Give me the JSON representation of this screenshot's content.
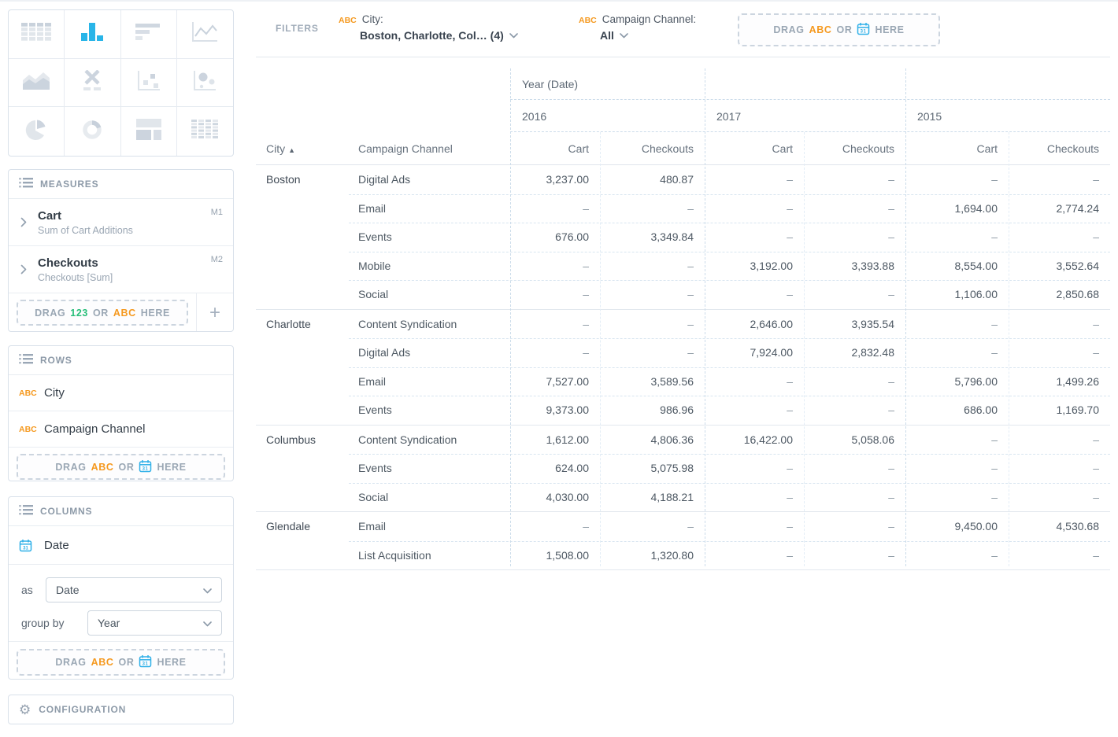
{
  "colors": {
    "accent_blue": "#29b5e8",
    "calendar_blue": "#2fb0e8",
    "abc_orange": "#f5991f",
    "num_green": "#27be79"
  },
  "sidebar": {
    "chart_picker": {
      "selected_index": 1,
      "icons": [
        "table",
        "bar-chart",
        "horizontal-bar-chart",
        "line-chart",
        "area-chart",
        "x-axis",
        "scatter-plot",
        "bubble-chart",
        "pie-chart",
        "donut-chart",
        "treemap",
        "pivot-table"
      ]
    },
    "measures": {
      "title": "MEASURES",
      "items": [
        {
          "name": "Cart",
          "desc": "Sum of Cart Additions",
          "badge": "M1"
        },
        {
          "name": "Checkouts",
          "desc": "Checkouts [Sum]",
          "badge": "M2"
        }
      ],
      "drop_tokens": [
        {
          "t": "DRAG",
          "k": "p"
        },
        {
          "t": "123",
          "k": "n"
        },
        {
          "t": "OR",
          "k": "p"
        },
        {
          "t": "ABC",
          "k": "a"
        },
        {
          "t": "HERE",
          "k": "p"
        }
      ],
      "add_label": "+"
    },
    "rows_panel": {
      "title": "ROWS",
      "items": [
        {
          "type": "abc",
          "badge": "ABC",
          "name": "City"
        },
        {
          "type": "abc",
          "badge": "ABC",
          "name": "Campaign Channel"
        }
      ],
      "drop_tokens": [
        {
          "t": "DRAG",
          "k": "p"
        },
        {
          "t": "ABC",
          "k": "a"
        },
        {
          "t": "OR",
          "k": "p"
        },
        {
          "t": "31",
          "k": "c"
        },
        {
          "t": "HERE",
          "k": "p"
        }
      ]
    },
    "columns_panel": {
      "title": "COLUMNS",
      "field_label": "Date",
      "as_label": "as",
      "as_value": "Date",
      "group_by_label": "group by",
      "group_by_value": "Year",
      "drop_tokens": [
        {
          "t": "DRAG",
          "k": "p"
        },
        {
          "t": "ABC",
          "k": "a"
        },
        {
          "t": "OR",
          "k": "p"
        },
        {
          "t": "31",
          "k": "c"
        },
        {
          "t": "HERE",
          "k": "p"
        }
      ]
    },
    "configuration": {
      "label": "CONFIGURATION"
    }
  },
  "filters": {
    "label": "FILTERS",
    "items": [
      {
        "badge": "ABC",
        "name": "City:",
        "value": "Boston, Charlotte, Col… (4)"
      },
      {
        "badge": "ABC",
        "name": "Campaign Channel:",
        "value": "All"
      }
    ],
    "drop_tokens": [
      {
        "t": "DRAG",
        "k": "p"
      },
      {
        "t": "ABC",
        "k": "a"
      },
      {
        "t": "OR",
        "k": "p"
      },
      {
        "t": "31",
        "k": "c"
      },
      {
        "t": "HERE",
        "k": "p"
      }
    ]
  },
  "table": {
    "col_group_label": "Year (Date)",
    "years": [
      "2016",
      "2017",
      "2015"
    ],
    "measure_cols": [
      "Cart",
      "Checkouts"
    ],
    "corner": {
      "city_header": "City",
      "sort_indicator": "▲",
      "channel_header": "Campaign Channel"
    },
    "groups": [
      {
        "city": "Boston",
        "rows": [
          {
            "channel": "Digital Ads",
            "values": [
              "3,237.00",
              "480.87",
              "–",
              "–",
              "–",
              "–"
            ]
          },
          {
            "channel": "Email",
            "values": [
              "–",
              "–",
              "–",
              "–",
              "1,694.00",
              "2,774.24"
            ]
          },
          {
            "channel": "Events",
            "values": [
              "676.00",
              "3,349.84",
              "–",
              "–",
              "–",
              "–"
            ]
          },
          {
            "channel": "Mobile",
            "values": [
              "–",
              "–",
              "3,192.00",
              "3,393.88",
              "8,554.00",
              "3,552.64"
            ]
          },
          {
            "channel": "Social",
            "values": [
              "–",
              "–",
              "–",
              "–",
              "1,106.00",
              "2,850.68"
            ]
          }
        ]
      },
      {
        "city": "Charlotte",
        "rows": [
          {
            "channel": "Content Syndication",
            "values": [
              "–",
              "–",
              "2,646.00",
              "3,935.54",
              "–",
              "–"
            ]
          },
          {
            "channel": "Digital Ads",
            "values": [
              "–",
              "–",
              "7,924.00",
              "2,832.48",
              "–",
              "–"
            ]
          },
          {
            "channel": "Email",
            "values": [
              "7,527.00",
              "3,589.56",
              "–",
              "–",
              "5,796.00",
              "1,499.26"
            ]
          },
          {
            "channel": "Events",
            "values": [
              "9,373.00",
              "986.96",
              "–",
              "–",
              "686.00",
              "1,169.70"
            ]
          }
        ]
      },
      {
        "city": "Columbus",
        "rows": [
          {
            "channel": "Content Syndication",
            "values": [
              "1,612.00",
              "4,806.36",
              "16,422.00",
              "5,058.06",
              "–",
              "–"
            ]
          },
          {
            "channel": "Events",
            "values": [
              "624.00",
              "5,075.98",
              "–",
              "–",
              "–",
              "–"
            ]
          },
          {
            "channel": "Social",
            "values": [
              "4,030.00",
              "4,188.21",
              "–",
              "–",
              "–",
              "–"
            ]
          }
        ]
      },
      {
        "city": "Glendale",
        "rows": [
          {
            "channel": "Email",
            "values": [
              "–",
              "–",
              "–",
              "–",
              "9,450.00",
              "4,530.68"
            ]
          },
          {
            "channel": "List Acquisition",
            "values": [
              "1,508.00",
              "1,320.80",
              "–",
              "–",
              "–",
              "–"
            ]
          }
        ]
      }
    ]
  }
}
